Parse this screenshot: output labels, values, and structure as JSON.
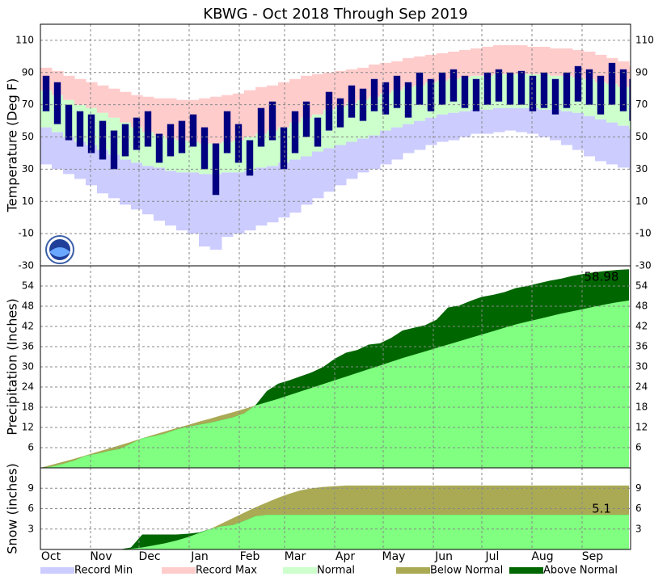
{
  "title": "KBWG - Oct 2018 Through Sep 2019",
  "xlim": [
    0,
    365
  ],
  "xticks": [
    {
      "value": 0,
      "label": "Oct"
    },
    {
      "value": 31,
      "label": "Nov"
    },
    {
      "value": 61,
      "label": "Dec"
    },
    {
      "value": 92,
      "label": "Jan"
    },
    {
      "value": 123,
      "label": "Feb"
    },
    {
      "value": 151,
      "label": "Mar"
    },
    {
      "value": 182,
      "label": "Apr"
    },
    {
      "value": 212,
      "label": "May"
    },
    {
      "value": 243,
      "label": "Jun"
    },
    {
      "value": 273,
      "label": "Jul"
    },
    {
      "value": 304,
      "label": "Aug"
    },
    {
      "value": 335,
      "label": "Sep"
    }
  ],
  "legend": [
    {
      "label": "Record Min",
      "color": "#ccccff"
    },
    {
      "label": "Record Max",
      "color": "#ffcccc"
    },
    {
      "label": "Normal",
      "color": "#ccffcc"
    },
    {
      "label": "Below Normal",
      "color": "#aaaa55"
    },
    {
      "label": "Above Normal",
      "color": "#006600"
    }
  ],
  "chart_data": [
    {
      "type": "temperature",
      "y_label": "Temperature (Deg F)",
      "ylim": [
        -30,
        120
      ],
      "yticks": [
        -30,
        -10,
        10,
        30,
        50,
        70,
        90,
        110
      ],
      "grid": true,
      "observed_color": "#000080",
      "x": [
        0,
        7,
        14,
        21,
        28,
        35,
        42,
        49,
        56,
        63,
        70,
        77,
        84,
        91,
        98,
        105,
        112,
        119,
        126,
        133,
        140,
        147,
        154,
        161,
        168,
        175,
        182,
        189,
        196,
        203,
        210,
        217,
        224,
        231,
        238,
        245,
        252,
        259,
        266,
        273,
        280,
        287,
        294,
        301,
        308,
        315,
        322,
        329,
        336,
        343,
        350,
        357,
        364
      ],
      "record_min": [
        33,
        30,
        27,
        24,
        20,
        15,
        12,
        8,
        5,
        2,
        -2,
        -5,
        -8,
        -10,
        -18,
        -20,
        -12,
        -10,
        -8,
        -5,
        -3,
        0,
        3,
        8,
        12,
        16,
        20,
        24,
        28,
        30,
        33,
        36,
        40,
        42,
        45,
        47,
        48,
        50,
        52,
        52,
        53,
        54,
        53,
        52,
        50,
        48,
        45,
        42,
        38,
        35,
        33,
        31,
        30
      ],
      "normal_low": [
        56,
        53,
        50,
        47,
        45,
        42,
        39,
        36,
        34,
        32,
        31,
        29,
        28,
        28,
        27,
        27,
        28,
        28,
        29,
        31,
        32,
        34,
        36,
        38,
        41,
        43,
        45,
        47,
        49,
        51,
        54,
        56,
        58,
        60,
        62,
        64,
        65,
        66,
        67,
        67,
        68,
        68,
        68,
        68,
        67,
        67,
        66,
        65,
        63,
        61,
        59,
        57,
        55
      ],
      "normal_high": [
        79,
        76,
        73,
        70,
        68,
        65,
        62,
        59,
        56,
        53,
        51,
        49,
        48,
        47,
        46,
        46,
        47,
        48,
        50,
        52,
        54,
        56,
        59,
        62,
        64,
        67,
        69,
        71,
        73,
        75,
        77,
        79,
        81,
        82,
        84,
        85,
        86,
        87,
        88,
        88,
        89,
        89,
        89,
        89,
        89,
        88,
        88,
        87,
        86,
        84,
        83,
        81,
        79
      ],
      "record_max": [
        93,
        91,
        88,
        86,
        84,
        82,
        80,
        78,
        76,
        75,
        74,
        74,
        73,
        73,
        74,
        75,
        76,
        77,
        79,
        81,
        82,
        84,
        86,
        88,
        89,
        90,
        91,
        92,
        93,
        95,
        96,
        97,
        99,
        100,
        101,
        102,
        103,
        104,
        105,
        106,
        107,
        107,
        107,
        106,
        106,
        105,
        105,
        104,
        103,
        101,
        99,
        97,
        94
      ],
      "observed_low": [
        66,
        58,
        48,
        44,
        40,
        36,
        30,
        38,
        42,
        44,
        34,
        38,
        40,
        44,
        30,
        14,
        40,
        34,
        26,
        44,
        48,
        30,
        40,
        50,
        44,
        54,
        56,
        62,
        60,
        66,
        64,
        68,
        62,
        70,
        66,
        70,
        72,
        68,
        66,
        70,
        72,
        70,
        70,
        66,
        68,
        64,
        68,
        72,
        70,
        64,
        70,
        66,
        60
      ],
      "observed_high": [
        88,
        84,
        70,
        66,
        64,
        60,
        54,
        58,
        62,
        66,
        52,
        58,
        60,
        64,
        56,
        46,
        66,
        58,
        48,
        68,
        72,
        56,
        66,
        72,
        62,
        78,
        74,
        82,
        80,
        86,
        84,
        88,
        84,
        90,
        86,
        90,
        92,
        88,
        86,
        90,
        92,
        90,
        91,
        88,
        90,
        86,
        90,
        94,
        92,
        88,
        96,
        92,
        86
      ]
    },
    {
      "type": "cumulative",
      "y_label": "Precipitation (Inches)",
      "ylim": [
        0,
        60
      ],
      "yticks": [
        6,
        12,
        18,
        24,
        30,
        36,
        42,
        48,
        54
      ],
      "grid": true,
      "normal_color": "#80ff80",
      "annotation": "58.98",
      "x": [
        0,
        7,
        14,
        21,
        28,
        35,
        42,
        49,
        56,
        63,
        70,
        77,
        84,
        91,
        98,
        105,
        112,
        119,
        126,
        133,
        140,
        147,
        154,
        161,
        168,
        175,
        182,
        189,
        196,
        203,
        210,
        217,
        224,
        231,
        238,
        245,
        252,
        259,
        266,
        273,
        280,
        287,
        294,
        301,
        308,
        315,
        322,
        329,
        336,
        343,
        350,
        357,
        364
      ],
      "observed": [
        0,
        0.4,
        1.2,
        2.2,
        3.6,
        4.2,
        5.0,
        5.6,
        7.2,
        8.8,
        9.4,
        10.2,
        11.4,
        12.2,
        12.8,
        13.4,
        14.2,
        15.0,
        16.2,
        18.6,
        22.8,
        25.0,
        26.0,
        27.2,
        28.4,
        30.0,
        32.4,
        34.2,
        35.0,
        36.6,
        37.0,
        38.6,
        40.8,
        41.6,
        42.4,
        44.0,
        47.6,
        48.2,
        49.6,
        50.8,
        51.4,
        52.2,
        53.4,
        54.0,
        54.8,
        55.6,
        56.2,
        57.0,
        57.6,
        58.1,
        58.5,
        58.8,
        58.98
      ],
      "normal": [
        0,
        0.9,
        1.8,
        2.7,
        3.7,
        4.7,
        5.7,
        6.7,
        7.7,
        8.8,
        9.8,
        10.8,
        11.8,
        12.7,
        13.7,
        14.6,
        15.6,
        16.5,
        17.5,
        18.5,
        19.5,
        20.5,
        21.6,
        22.7,
        23.8,
        24.9,
        26.0,
        27.1,
        28.2,
        29.3,
        30.4,
        31.5,
        32.6,
        33.6,
        34.6,
        35.6,
        36.6,
        37.6,
        38.6,
        39.6,
        40.6,
        41.6,
        42.6,
        43.4,
        44.2,
        45.0,
        45.8,
        46.5,
        47.2,
        47.9,
        48.6,
        49.2,
        49.7
      ]
    },
    {
      "type": "cumulative",
      "y_label": "Snow (inches)",
      "ylim": [
        0,
        12
      ],
      "yticks": [
        3,
        6,
        9
      ],
      "grid": true,
      "normal_color": "#80ff80",
      "annotation": "5.1",
      "x": [
        0,
        7,
        14,
        21,
        28,
        35,
        42,
        49,
        56,
        63,
        70,
        77,
        84,
        91,
        98,
        105,
        112,
        119,
        126,
        133,
        140,
        147,
        154,
        161,
        168,
        175,
        182,
        189,
        196,
        203,
        210,
        217,
        224,
        231,
        238,
        245,
        252,
        259,
        266,
        273,
        280,
        287,
        294,
        301,
        308,
        315,
        322,
        329,
        336,
        343,
        350,
        357,
        364
      ],
      "observed": [
        0,
        0,
        0,
        0,
        0,
        0,
        0,
        0,
        0.3,
        2.2,
        2.2,
        2.2,
        2.2,
        2.3,
        2.5,
        3.0,
        3.4,
        3.6,
        4.2,
        4.9,
        5.1,
        5.1,
        5.1,
        5.1,
        5.1,
        5.1,
        5.1,
        5.1,
        5.1,
        5.1,
        5.1,
        5.1,
        5.1,
        5.1,
        5.1,
        5.1,
        5.1,
        5.1,
        5.1,
        5.1,
        5.1,
        5.1,
        5.1,
        5.1,
        5.1,
        5.1,
        5.1,
        5.1,
        5.1,
        5.1,
        5.1,
        5.1,
        5.1
      ],
      "normal": [
        0,
        0,
        0,
        0,
        0,
        0,
        0,
        0,
        0.1,
        0.3,
        0.6,
        0.9,
        1.3,
        1.8,
        2.4,
        3.0,
        3.8,
        4.6,
        5.4,
        6.2,
        6.9,
        7.6,
        8.2,
        8.7,
        9.0,
        9.2,
        9.3,
        9.4,
        9.4,
        9.4,
        9.4,
        9.4,
        9.4,
        9.4,
        9.4,
        9.4,
        9.4,
        9.4,
        9.4,
        9.4,
        9.4,
        9.4,
        9.4,
        9.4,
        9.4,
        9.4,
        9.4,
        9.4,
        9.4,
        9.4,
        9.4,
        9.4,
        9.4
      ]
    }
  ]
}
